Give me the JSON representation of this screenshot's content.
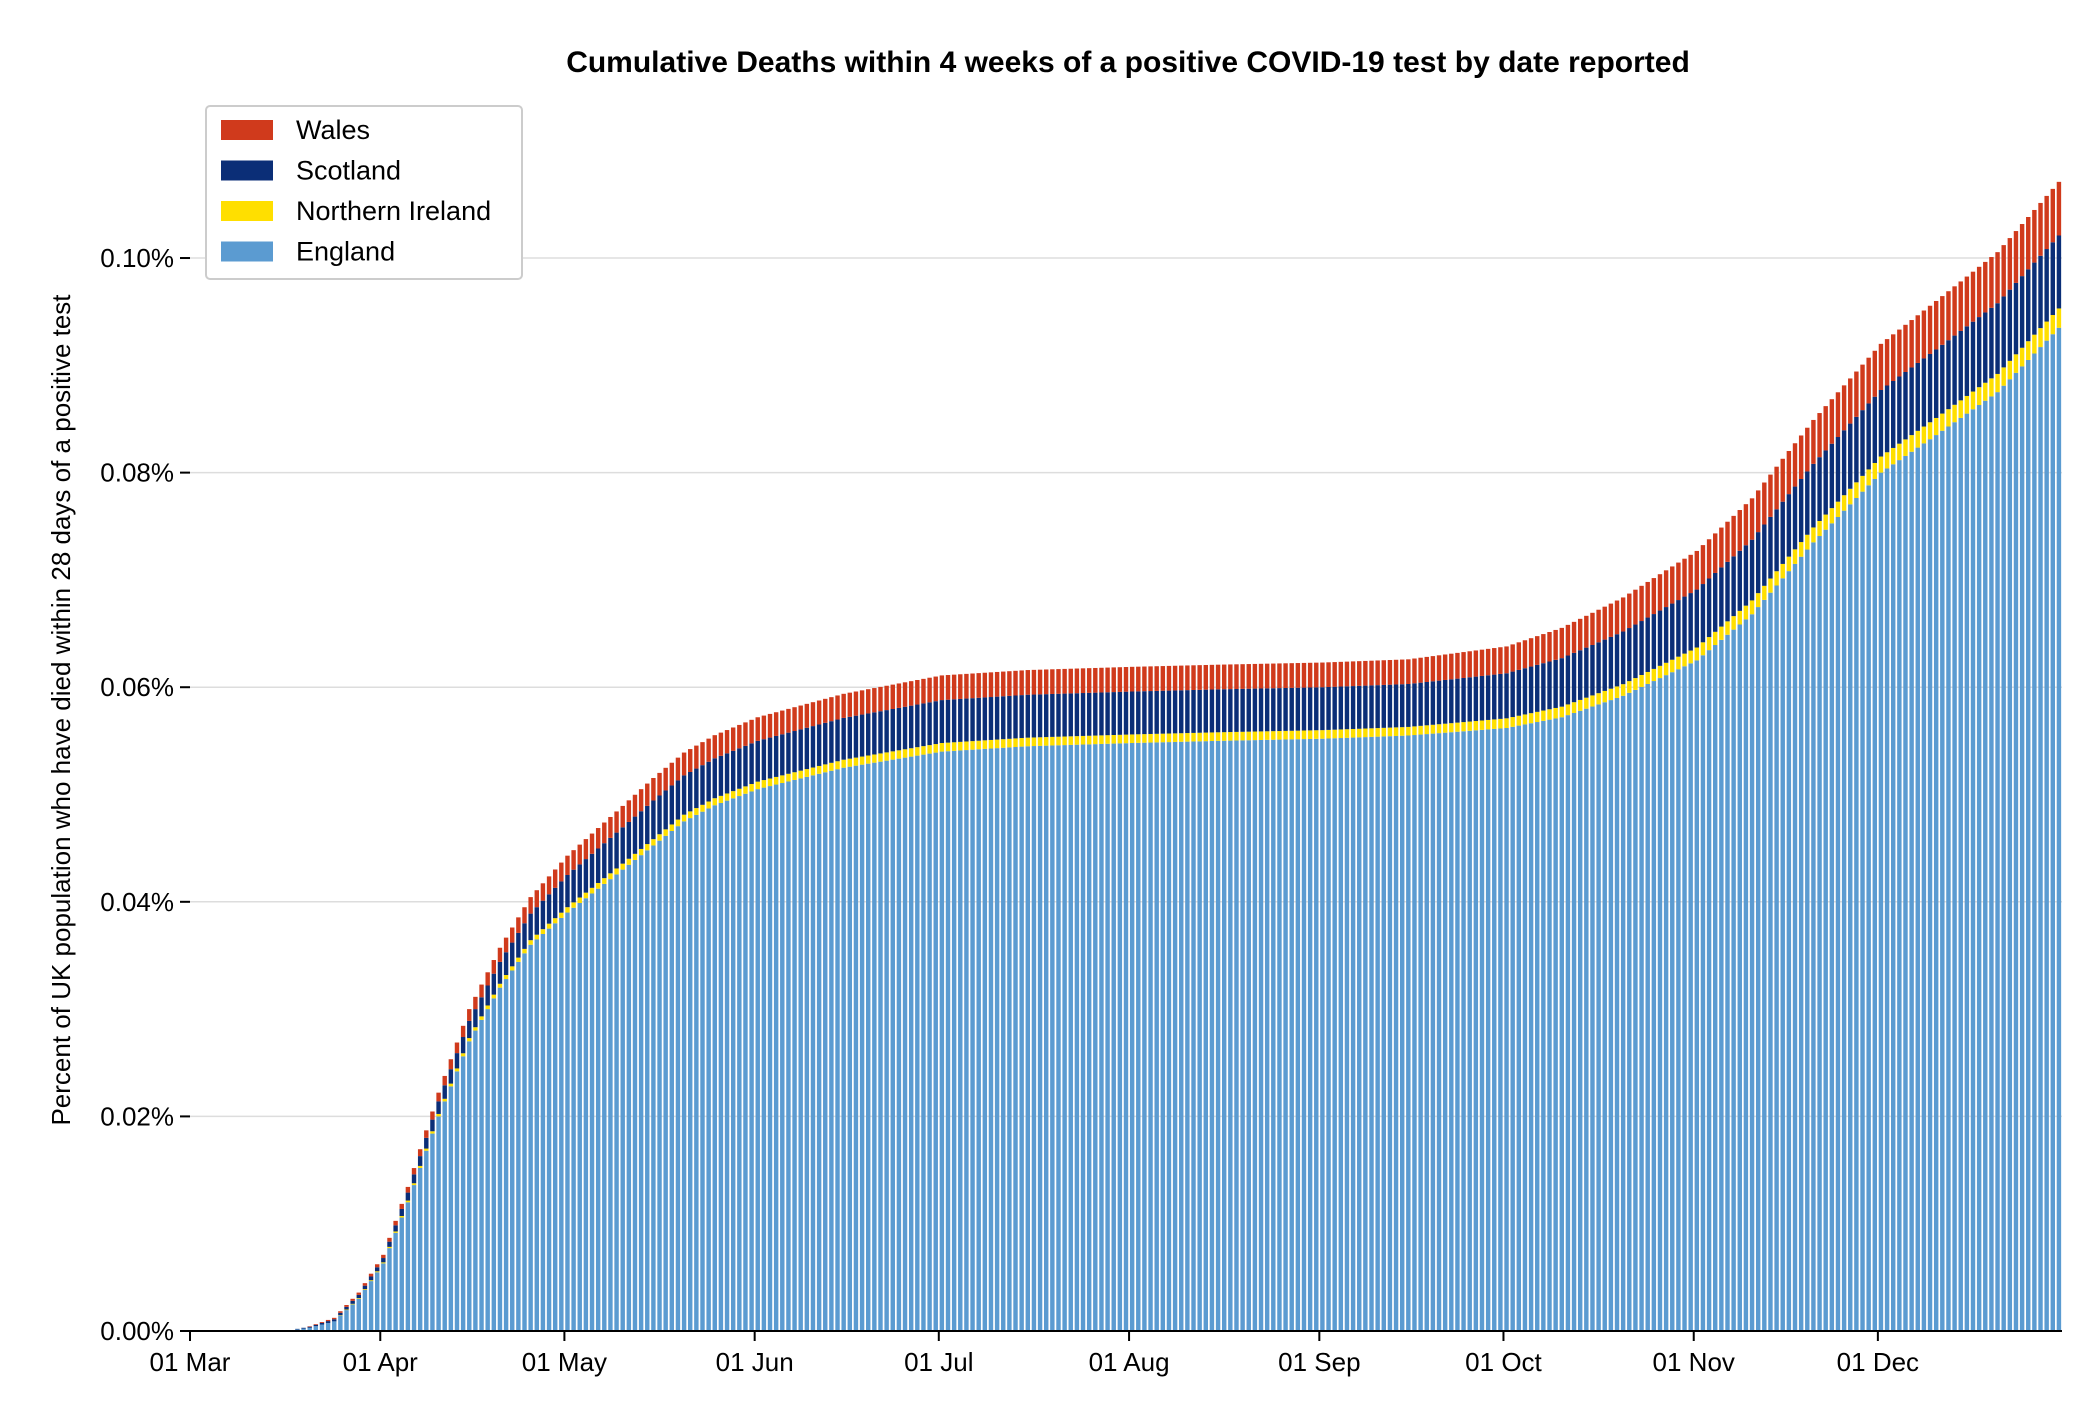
{
  "chart_data": {
    "type": "bar",
    "stacked": true,
    "title": "Cumulative Deaths within 4 weeks of a positive COVID-19 test by date reported",
    "xlabel": "",
    "ylabel": "Percent of UK population who have died within 28 days of a positive test",
    "x_range": [
      "2020-03-01",
      "2020-12-30"
    ],
    "ylim": [
      0,
      0.111
    ],
    "y_ticks": [
      {
        "value": 0.0,
        "label": "0.00%"
      },
      {
        "value": 0.02,
        "label": "0.02%"
      },
      {
        "value": 0.04,
        "label": "0.04%"
      },
      {
        "value": 0.06,
        "label": "0.06%"
      },
      {
        "value": 0.08,
        "label": "0.08%"
      },
      {
        "value": 0.1,
        "label": "0.10%"
      }
    ],
    "x_ticks": [
      {
        "date": "2020-03-01",
        "label": "01 Mar"
      },
      {
        "date": "2020-04-01",
        "label": "01 Apr"
      },
      {
        "date": "2020-05-01",
        "label": "01 May"
      },
      {
        "date": "2020-06-01",
        "label": "01 Jun"
      },
      {
        "date": "2020-07-01",
        "label": "01 Jul"
      },
      {
        "date": "2020-08-01",
        "label": "01 Aug"
      },
      {
        "date": "2020-09-01",
        "label": "01 Sep"
      },
      {
        "date": "2020-10-01",
        "label": "01 Oct"
      },
      {
        "date": "2020-11-01",
        "label": "01 Nov"
      },
      {
        "date": "2020-12-01",
        "label": "01 Dec"
      }
    ],
    "grid": {
      "y": true,
      "x": false
    },
    "legend_position": "top-left",
    "legend": [
      {
        "name": "Wales",
        "color": "#d03a1c"
      },
      {
        "name": "Scotland",
        "color": "#0b2e77"
      },
      {
        "name": "Northern Ireland",
        "color": "#ffdf00"
      },
      {
        "name": "England",
        "color": "#5b9bd1"
      }
    ],
    "stack_order": [
      "England",
      "Northern Ireland",
      "Scotland",
      "Wales"
    ],
    "series": [
      {
        "name": "England",
        "color": "#5b9bd1",
        "points": [
          {
            "date": "2020-03-06",
            "value": 0.0
          },
          {
            "date": "2020-03-16",
            "value": 0.0
          },
          {
            "date": "2020-03-20",
            "value": 0.0003
          },
          {
            "date": "2020-03-24",
            "value": 0.0009
          },
          {
            "date": "2020-03-28",
            "value": 0.003
          },
          {
            "date": "2020-04-01",
            "value": 0.0063
          },
          {
            "date": "2020-04-05",
            "value": 0.012
          },
          {
            "date": "2020-04-10",
            "value": 0.02
          },
          {
            "date": "2020-04-15",
            "value": 0.027
          },
          {
            "date": "2020-04-20",
            "value": 0.032
          },
          {
            "date": "2020-04-25",
            "value": 0.036
          },
          {
            "date": "2020-05-01",
            "value": 0.039
          },
          {
            "date": "2020-05-10",
            "value": 0.043
          },
          {
            "date": "2020-05-20",
            "value": 0.0475
          },
          {
            "date": "2020-05-25",
            "value": 0.049
          },
          {
            "date": "2020-06-01",
            "value": 0.0505
          },
          {
            "date": "2020-06-15",
            "value": 0.0525
          },
          {
            "date": "2020-07-01",
            "value": 0.054
          },
          {
            "date": "2020-07-15",
            "value": 0.0545
          },
          {
            "date": "2020-08-01",
            "value": 0.0548
          },
          {
            "date": "2020-08-15",
            "value": 0.055
          },
          {
            "date": "2020-09-01",
            "value": 0.0552
          },
          {
            "date": "2020-09-15",
            "value": 0.0555
          },
          {
            "date": "2020-10-01",
            "value": 0.0562
          },
          {
            "date": "2020-10-10",
            "value": 0.0572
          },
          {
            "date": "2020-10-20",
            "value": 0.0592
          },
          {
            "date": "2020-11-01",
            "value": 0.0625
          },
          {
            "date": "2020-11-10",
            "value": 0.0668
          },
          {
            "date": "2020-11-20",
            "value": 0.0735
          },
          {
            "date": "2020-12-01",
            "value": 0.08
          },
          {
            "date": "2020-12-10",
            "value": 0.0835
          },
          {
            "date": "2020-12-20",
            "value": 0.0875
          },
          {
            "date": "2020-12-30",
            "value": 0.0935
          }
        ]
      },
      {
        "name": "Northern Ireland",
        "color": "#ffdf00",
        "points": [
          {
            "date": "2020-03-20",
            "value": 0.0
          },
          {
            "date": "2020-04-01",
            "value": 0.0001
          },
          {
            "date": "2020-04-15",
            "value": 0.0003
          },
          {
            "date": "2020-05-01",
            "value": 0.0005
          },
          {
            "date": "2020-06-01",
            "value": 0.0007
          },
          {
            "date": "2020-07-01",
            "value": 0.0008
          },
          {
            "date": "2020-09-15",
            "value": 0.0008
          },
          {
            "date": "2020-10-01",
            "value": 0.0009
          },
          {
            "date": "2020-11-01",
            "value": 0.0012
          },
          {
            "date": "2020-12-01",
            "value": 0.0015
          },
          {
            "date": "2020-12-30",
            "value": 0.0018
          }
        ]
      },
      {
        "name": "Scotland",
        "color": "#0b2e77",
        "points": [
          {
            "date": "2020-03-16",
            "value": 0.0
          },
          {
            "date": "2020-04-01",
            "value": 0.0004
          },
          {
            "date": "2020-04-15",
            "value": 0.0016
          },
          {
            "date": "2020-05-01",
            "value": 0.003
          },
          {
            "date": "2020-05-15",
            "value": 0.0036
          },
          {
            "date": "2020-06-01",
            "value": 0.0038
          },
          {
            "date": "2020-07-01",
            "value": 0.004
          },
          {
            "date": "2020-09-15",
            "value": 0.004
          },
          {
            "date": "2020-10-01",
            "value": 0.0042
          },
          {
            "date": "2020-10-15",
            "value": 0.0047
          },
          {
            "date": "2020-11-01",
            "value": 0.0054
          },
          {
            "date": "2020-11-15",
            "value": 0.0058
          },
          {
            "date": "2020-12-01",
            "value": 0.0062
          },
          {
            "date": "2020-12-30",
            "value": 0.0068
          }
        ]
      },
      {
        "name": "Wales",
        "color": "#d03a1c",
        "points": [
          {
            "date": "2020-03-18",
            "value": 0.0
          },
          {
            "date": "2020-04-01",
            "value": 0.0003
          },
          {
            "date": "2020-04-15",
            "value": 0.0011
          },
          {
            "date": "2020-05-01",
            "value": 0.0018
          },
          {
            "date": "2020-05-15",
            "value": 0.0021
          },
          {
            "date": "2020-06-01",
            "value": 0.0022
          },
          {
            "date": "2020-07-01",
            "value": 0.0023
          },
          {
            "date": "2020-09-15",
            "value": 0.0023
          },
          {
            "date": "2020-10-01",
            "value": 0.0025
          },
          {
            "date": "2020-10-15",
            "value": 0.003
          },
          {
            "date": "2020-11-01",
            "value": 0.0036
          },
          {
            "date": "2020-11-15",
            "value": 0.004
          },
          {
            "date": "2020-12-01",
            "value": 0.0043
          },
          {
            "date": "2020-12-30",
            "value": 0.005
          }
        ]
      }
    ]
  }
}
